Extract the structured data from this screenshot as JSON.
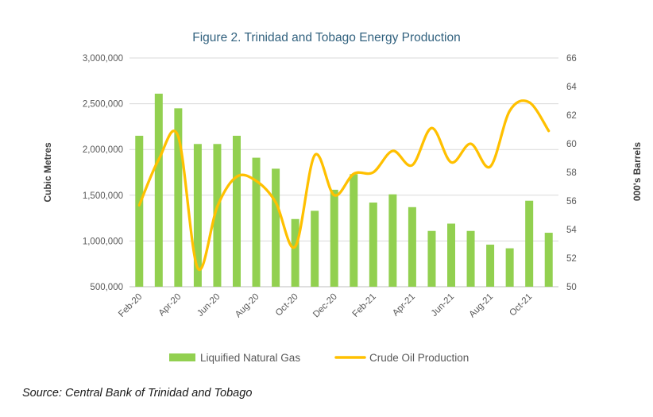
{
  "title": "Figure 2. Trinidad and Tobago Energy Production",
  "source_note": "Source: Central Bank of Trinidad and Tobago",
  "colors": {
    "bar": "#92D050",
    "line": "#FFC000",
    "title_text": "#31617E",
    "tick_text": "#595959",
    "axis_title_text": "#3F3F3F",
    "grid": "#D9D9D9",
    "axis_line": "#BFBFBF",
    "source_text": "#1A1A1A"
  },
  "left_axis": {
    "title": "Cubic Metres",
    "min": 500000,
    "max": 3000000,
    "step": 500000,
    "tick_labels": [
      "500,000",
      "1,000,000",
      "1,500,000",
      "2,000,000",
      "2,500,000",
      "3,000,000"
    ]
  },
  "right_axis": {
    "title": "000's Barrels",
    "min": 50,
    "max": 66,
    "step": 2,
    "tick_labels": [
      "50",
      "52",
      "54",
      "56",
      "58",
      "60",
      "62",
      "64",
      "66"
    ]
  },
  "legend": {
    "lng_label": "Liquified Natural Gas",
    "crude_label": "Crude Oil Production"
  },
  "chart_data": {
    "type": "bar+line combo",
    "title": "Figure 2. Trinidad and Tobago Energy Production",
    "categories": [
      "Feb-20",
      "Mar-20",
      "Apr-20",
      "May-20",
      "Jun-20",
      "Jul-20",
      "Aug-20",
      "Sep-20",
      "Oct-20",
      "Nov-20",
      "Dec-20",
      "Jan-21",
      "Feb-21",
      "Mar-21",
      "Apr-21",
      "May-21",
      "Jun-21",
      "Jul-21",
      "Aug-21",
      "Sep-21",
      "Oct-21",
      "Nov-21"
    ],
    "x_tick_labels_shown": [
      "Feb-20",
      "Apr-20",
      "Jun-20",
      "Aug-20",
      "Oct-20",
      "Dec-20",
      "Feb-21",
      "Apr-21",
      "Jun-21",
      "Aug-21",
      "Oct-21"
    ],
    "x_tick_step": 2,
    "grid": true,
    "legend_position": "bottom",
    "series": [
      {
        "name": "Liquified Natural Gas",
        "type": "bar",
        "axis": "left",
        "ylabel": "Cubic Metres",
        "ylim": [
          500000,
          3000000
        ],
        "values": [
          2150000,
          2610000,
          2450000,
          2060000,
          2060000,
          2150000,
          1910000,
          1790000,
          1240000,
          1330000,
          1560000,
          1730000,
          1420000,
          1510000,
          1370000,
          1110000,
          1190000,
          1110000,
          960000,
          920000,
          1440000,
          1090000
        ]
      },
      {
        "name": "Crude Oil Production",
        "type": "line",
        "smooth": true,
        "axis": "right",
        "ylabel": "000's Barrels",
        "ylim": [
          50,
          66
        ],
        "values": [
          55.7,
          58.9,
          60.5,
          51.3,
          55.6,
          57.7,
          57.4,
          55.9,
          52.8,
          59.2,
          56.4,
          57.9,
          58.0,
          59.5,
          58.5,
          61.1,
          58.7,
          60.0,
          58.4,
          62.3,
          62.9,
          60.9
        ]
      }
    ]
  }
}
